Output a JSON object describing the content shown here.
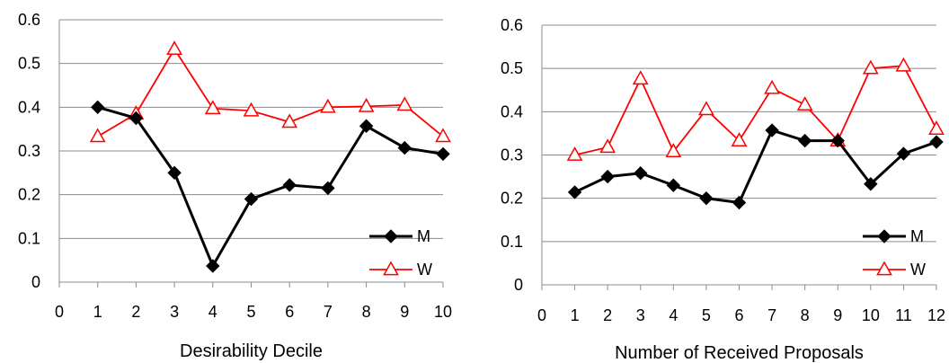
{
  "colors": {
    "M": "#000000",
    "W": "#ff0000",
    "grid": "#8c8c8c",
    "axis": "#8c8c8c"
  },
  "chart_data": [
    {
      "type": "line",
      "title": "",
      "xlabel": "Desirability Decile",
      "ylabel": "",
      "xlim": [
        0,
        10
      ],
      "ylim": [
        0,
        0.6
      ],
      "xticks": [
        "0",
        "1",
        "2",
        "3",
        "4",
        "5",
        "6",
        "7",
        "8",
        "9",
        "10"
      ],
      "yticks": [
        "0",
        "0.1",
        "0.2",
        "0.3",
        "0.4",
        "0.5",
        "0.6"
      ],
      "grid": "horizontal",
      "legend_position": "bottom-right",
      "x": [
        1,
        2,
        3,
        4,
        5,
        6,
        7,
        8,
        9,
        10
      ],
      "series": [
        {
          "name": "M",
          "marker": "diamond",
          "values": [
            0.4,
            0.375,
            0.25,
            0.037,
            0.19,
            0.222,
            0.215,
            0.357,
            0.307,
            0.293
          ]
        },
        {
          "name": "W",
          "marker": "triangle",
          "values": [
            0.333,
            0.385,
            0.533,
            0.397,
            0.392,
            0.366,
            0.4,
            0.402,
            0.405,
            0.333
          ]
        }
      ]
    },
    {
      "type": "line",
      "title": "",
      "xlabel": "Number of Received Proposals",
      "ylabel": "",
      "xlim": [
        0,
        12
      ],
      "ylim": [
        0,
        0.6
      ],
      "xticks": [
        "0",
        "1",
        "2",
        "3",
        "4",
        "5",
        "6",
        "7",
        "8",
        "9",
        "10",
        "11",
        "12"
      ],
      "yticks": [
        "0",
        "0.1",
        "0.2",
        "0.3",
        "0.4",
        "0.5",
        "0.6"
      ],
      "grid": "horizontal",
      "legend_position": "bottom-right",
      "x": [
        1,
        2,
        3,
        4,
        5,
        6,
        7,
        8,
        9,
        10,
        11,
        12
      ],
      "series": [
        {
          "name": "M",
          "marker": "diamond",
          "values": [
            0.214,
            0.25,
            0.258,
            0.23,
            0.2,
            0.19,
            0.357,
            0.333,
            0.333,
            0.233,
            0.303,
            0.33
          ]
        },
        {
          "name": "W",
          "marker": "triangle",
          "values": [
            0.3,
            0.318,
            0.476,
            0.308,
            0.405,
            0.333,
            0.454,
            0.416,
            0.333,
            0.5,
            0.506,
            0.36
          ]
        }
      ]
    }
  ]
}
